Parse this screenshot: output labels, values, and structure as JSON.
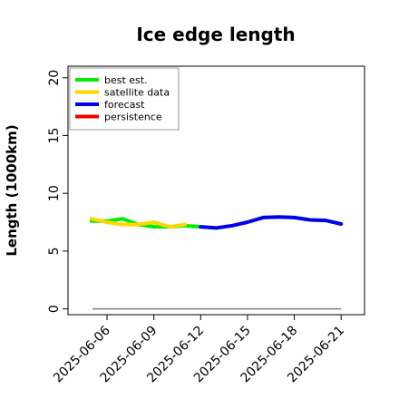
{
  "chart_data": {
    "type": "line",
    "title": "Ice edge length",
    "xlabel": "",
    "ylabel": "Length (1000km)",
    "ylim": [
      -0.5,
      21
    ],
    "yticks": [
      0,
      5,
      10,
      15,
      20
    ],
    "xlim": [
      "2025-06-03T12:00",
      "2025-06-22T12:00"
    ],
    "xticks": [
      "2025-06-06",
      "2025-06-09",
      "2025-06-12",
      "2025-06-15",
      "2025-06-18",
      "2025-06-21"
    ],
    "highlight_tick": "2025-06-12",
    "highlight_color": "#228b22",
    "grid": false,
    "legend_position": "top-left",
    "baseline": {
      "y": 0,
      "color": "#808080"
    },
    "series": [
      {
        "name": "best est.",
        "color": "#00ee00",
        "x": [
          "2025-06-05",
          "2025-06-06",
          "2025-06-07",
          "2025-06-08",
          "2025-06-09",
          "2025-06-10",
          "2025-06-11",
          "2025-06-12"
        ],
        "y": [
          7.6,
          7.6,
          7.8,
          7.3,
          7.1,
          7.1,
          7.2,
          7.1
        ]
      },
      {
        "name": "satellite data",
        "color": "#ffd700",
        "x": [
          "2025-06-05",
          "2025-06-06",
          "2025-06-07",
          "2025-06-08",
          "2025-06-09",
          "2025-06-10",
          "2025-06-11"
        ],
        "y": [
          7.8,
          7.5,
          7.3,
          7.3,
          7.5,
          7.1,
          7.3
        ]
      },
      {
        "name": "forecast",
        "color": "#0000ee",
        "x": [
          "2025-06-12",
          "2025-06-13",
          "2025-06-14",
          "2025-06-15",
          "2025-06-16",
          "2025-06-17",
          "2025-06-18",
          "2025-06-19",
          "2025-06-20",
          "2025-06-21"
        ],
        "y": [
          7.1,
          7.0,
          7.2,
          7.5,
          7.9,
          7.95,
          7.9,
          7.7,
          7.65,
          7.35
        ]
      },
      {
        "name": "persistence",
        "color": "#ee0000",
        "x": [],
        "y": []
      }
    ]
  }
}
